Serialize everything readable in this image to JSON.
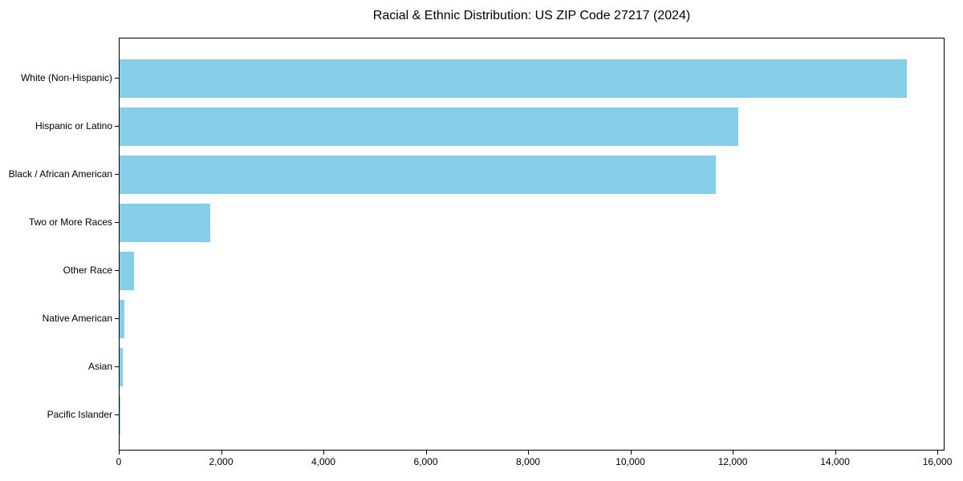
{
  "chart_data": {
    "type": "bar",
    "orientation": "horizontal",
    "title": "Racial & Ethnic Distribution: US ZIP Code 27217 (2024)",
    "categories": [
      "White (Non-Hispanic)",
      "Hispanic or Latino",
      "Black / African American",
      "Two or More Races",
      "Other Race",
      "Native American",
      "Asian",
      "Pacific Islander"
    ],
    "values": [
      15390,
      12090,
      11650,
      1770,
      280,
      100,
      60,
      15
    ],
    "xlabel": "",
    "ylabel": "",
    "xlim": [
      0,
      16140
    ],
    "xticks": [
      0,
      2000,
      4000,
      6000,
      8000,
      10000,
      12000,
      14000,
      16000
    ],
    "xtick_labels": [
      "0",
      "2,000",
      "4,000",
      "6,000",
      "8,000",
      "10,000",
      "12,000",
      "14,000",
      "16,000"
    ],
    "grid": false,
    "legend_position": "none"
  },
  "colors": {
    "bar": "#87CEEB",
    "text": "#000000",
    "axis": "#000000",
    "background": "#FFFFFF"
  }
}
